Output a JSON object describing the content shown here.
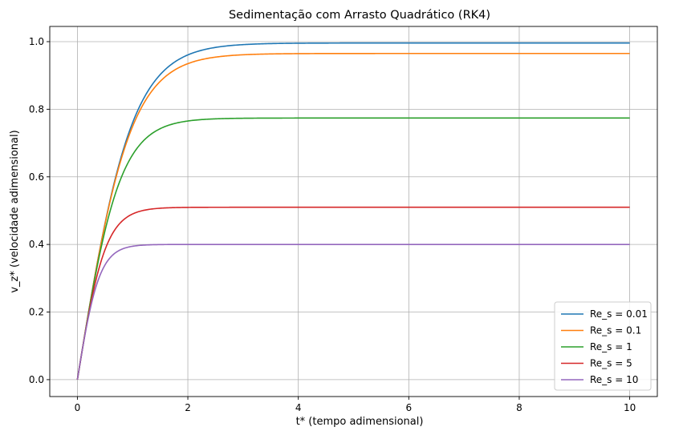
{
  "chart_data": {
    "type": "line",
    "title": "Sedimentação com Arrasto Quadrático (RK4)",
    "xlabel": "t* (tempo adimensional)",
    "ylabel": "v_z* (velocidade adimensional)",
    "xlim": [
      -0.5,
      10.5
    ],
    "ylim": [
      -0.05,
      1.045
    ],
    "xticks": [
      0,
      2,
      4,
      6,
      8,
      10
    ],
    "xtick_labels": [
      "0",
      "2",
      "4",
      "6",
      "8",
      "10"
    ],
    "yticks": [
      0.0,
      0.2,
      0.4,
      0.6,
      0.8,
      1.0
    ],
    "ytick_labels": [
      "0.0",
      "0.2",
      "0.4",
      "0.6",
      "0.8",
      "1.0"
    ],
    "grid": true,
    "legend_position": "bottom-right",
    "t_end": 10,
    "series": [
      {
        "name": "Re_s = 0.01",
        "color": "#1f77b4",
        "terminal_velocity": 0.996
      },
      {
        "name": "Re_s = 0.1",
        "color": "#ff7f0e",
        "terminal_velocity": 0.965
      },
      {
        "name": "Re_s = 1",
        "color": "#2ca02c",
        "terminal_velocity": 0.774
      },
      {
        "name": "Re_s = 5",
        "color": "#d62728",
        "terminal_velocity": 0.51
      },
      {
        "name": "Re_s = 10",
        "color": "#9467bd",
        "terminal_velocity": 0.4
      }
    ]
  }
}
